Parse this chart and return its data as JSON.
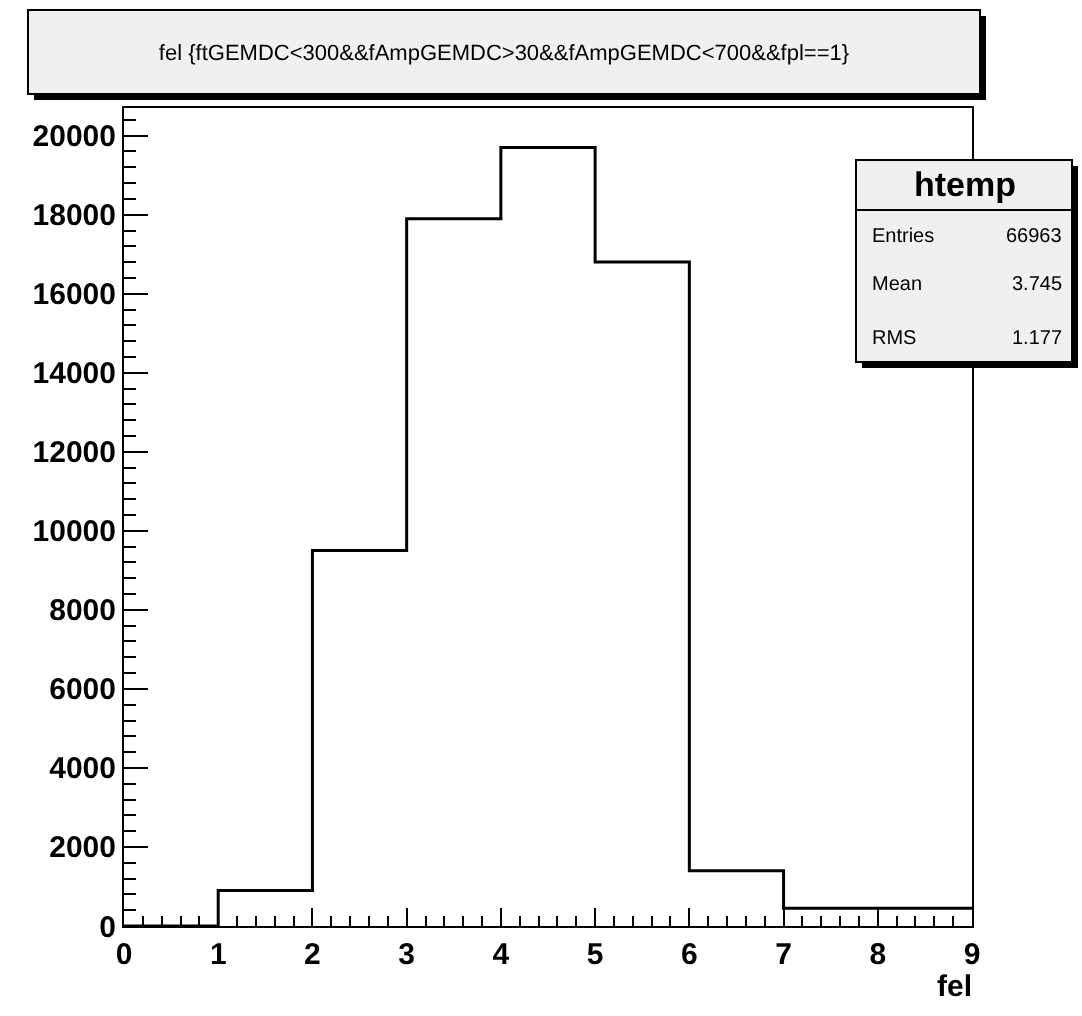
{
  "chart_data": {
    "type": "histogram",
    "title": "fel {ftGEMDC<300&&fAmpGEMDC>30&&fAmpGEMDC<700&&fpl==1}",
    "xlabel": "fel",
    "bins": [
      0,
      1,
      2,
      3,
      4,
      5,
      6,
      7,
      8,
      9
    ],
    "values": [
      0,
      900,
      9500,
      17900,
      19700,
      16800,
      1400,
      450,
      450
    ],
    "color": "#000000",
    "xlim": [
      0,
      9
    ],
    "xticks": [
      0,
      1,
      2,
      3,
      4,
      5,
      6,
      7,
      8,
      9
    ],
    "ylim": [
      0,
      20700
    ],
    "yticks": [
      0,
      2000,
      4000,
      6000,
      8000,
      10000,
      12000,
      14000,
      16000,
      18000,
      20000
    ],
    "grid": false,
    "annotations": [
      "htemp",
      "Entries",
      "66963",
      "Mean",
      "3.745",
      "RMS",
      "1.177"
    ]
  }
}
